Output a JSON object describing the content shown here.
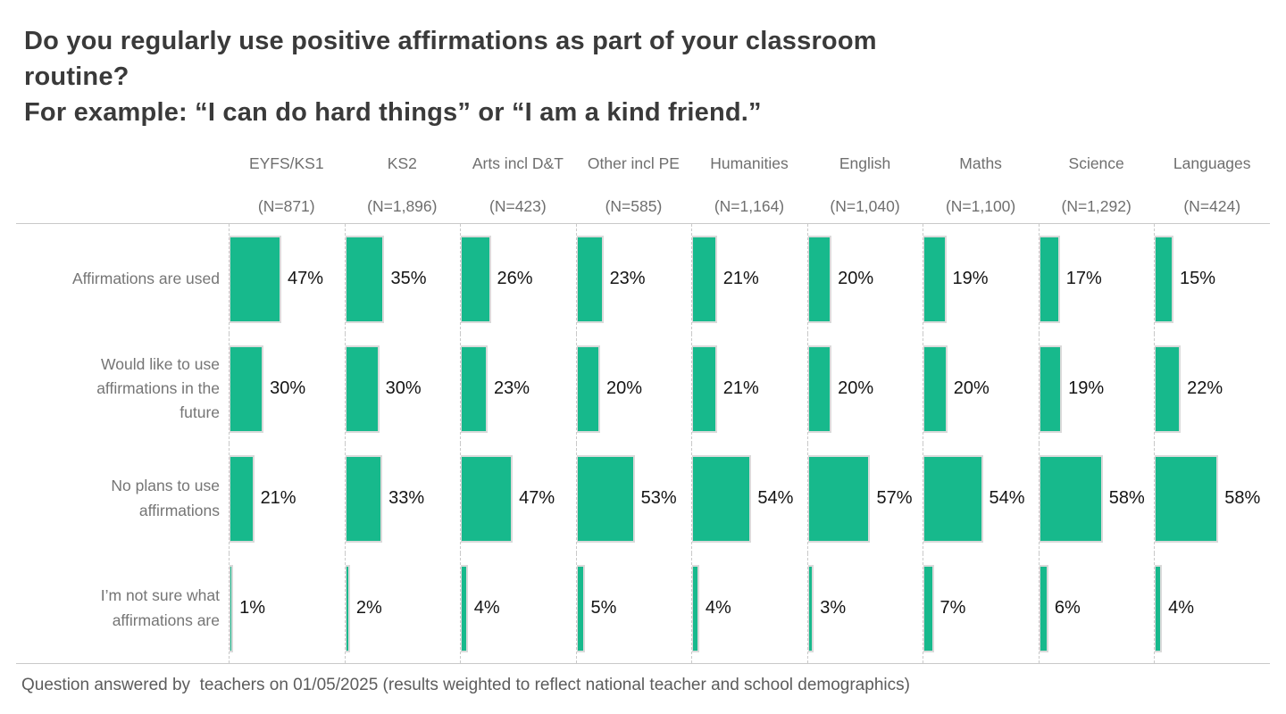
{
  "colors": {
    "bar_fill": "#17b98c",
    "bar_border": "#dadada",
    "gridline": "#c9c9c9",
    "title_text": "#3a3a3a",
    "axis_text": "#6f6f6f",
    "value_text": "#141414",
    "footer_text": "#5c5c5c"
  },
  "chart_data": {
    "type": "bar",
    "orientation": "horizontal",
    "unit": "%",
    "value_range": [
      0,
      100
    ],
    "grid": "dashed-vertical-column-separators",
    "title_lines": [
      "Do you regularly use positive affirmations as part of your classroom",
      "routine?",
      "For example: “I can do hard things” or “I am a kind friend.”"
    ],
    "columns": [
      {
        "label": "EYFS/KS1",
        "n": "(N=871)"
      },
      {
        "label": "KS2",
        "n": "(N=1,896)"
      },
      {
        "label": "Arts incl D&T",
        "n": "(N=423)"
      },
      {
        "label": "Other incl PE",
        "n": "(N=585)"
      },
      {
        "label": "Humanities",
        "n": "(N=1,164)"
      },
      {
        "label": "English",
        "n": "(N=1,040)"
      },
      {
        "label": "Maths",
        "n": "(N=1,100)"
      },
      {
        "label": "Science",
        "n": "(N=1,292)"
      },
      {
        "label": "Languages",
        "n": "(N=424)"
      }
    ],
    "rows": [
      {
        "label": "Affirmations are used",
        "values": [
          47,
          35,
          26,
          23,
          21,
          20,
          19,
          17,
          15
        ]
      },
      {
        "label": "Would like to use affirmations in the future",
        "values": [
          30,
          30,
          23,
          20,
          21,
          20,
          20,
          19,
          22
        ]
      },
      {
        "label": "No plans to use affirmations",
        "values": [
          21,
          33,
          47,
          53,
          54,
          57,
          54,
          58,
          58
        ]
      },
      {
        "label": "I’m not sure what affirmations are",
        "values": [
          1,
          2,
          4,
          5,
          4,
          3,
          7,
          6,
          4
        ]
      }
    ],
    "value_label_format": "{v}%",
    "footer": "Question answered by  teachers on 01/05/2025 (results weighted to reflect national teacher and school demographics)"
  }
}
